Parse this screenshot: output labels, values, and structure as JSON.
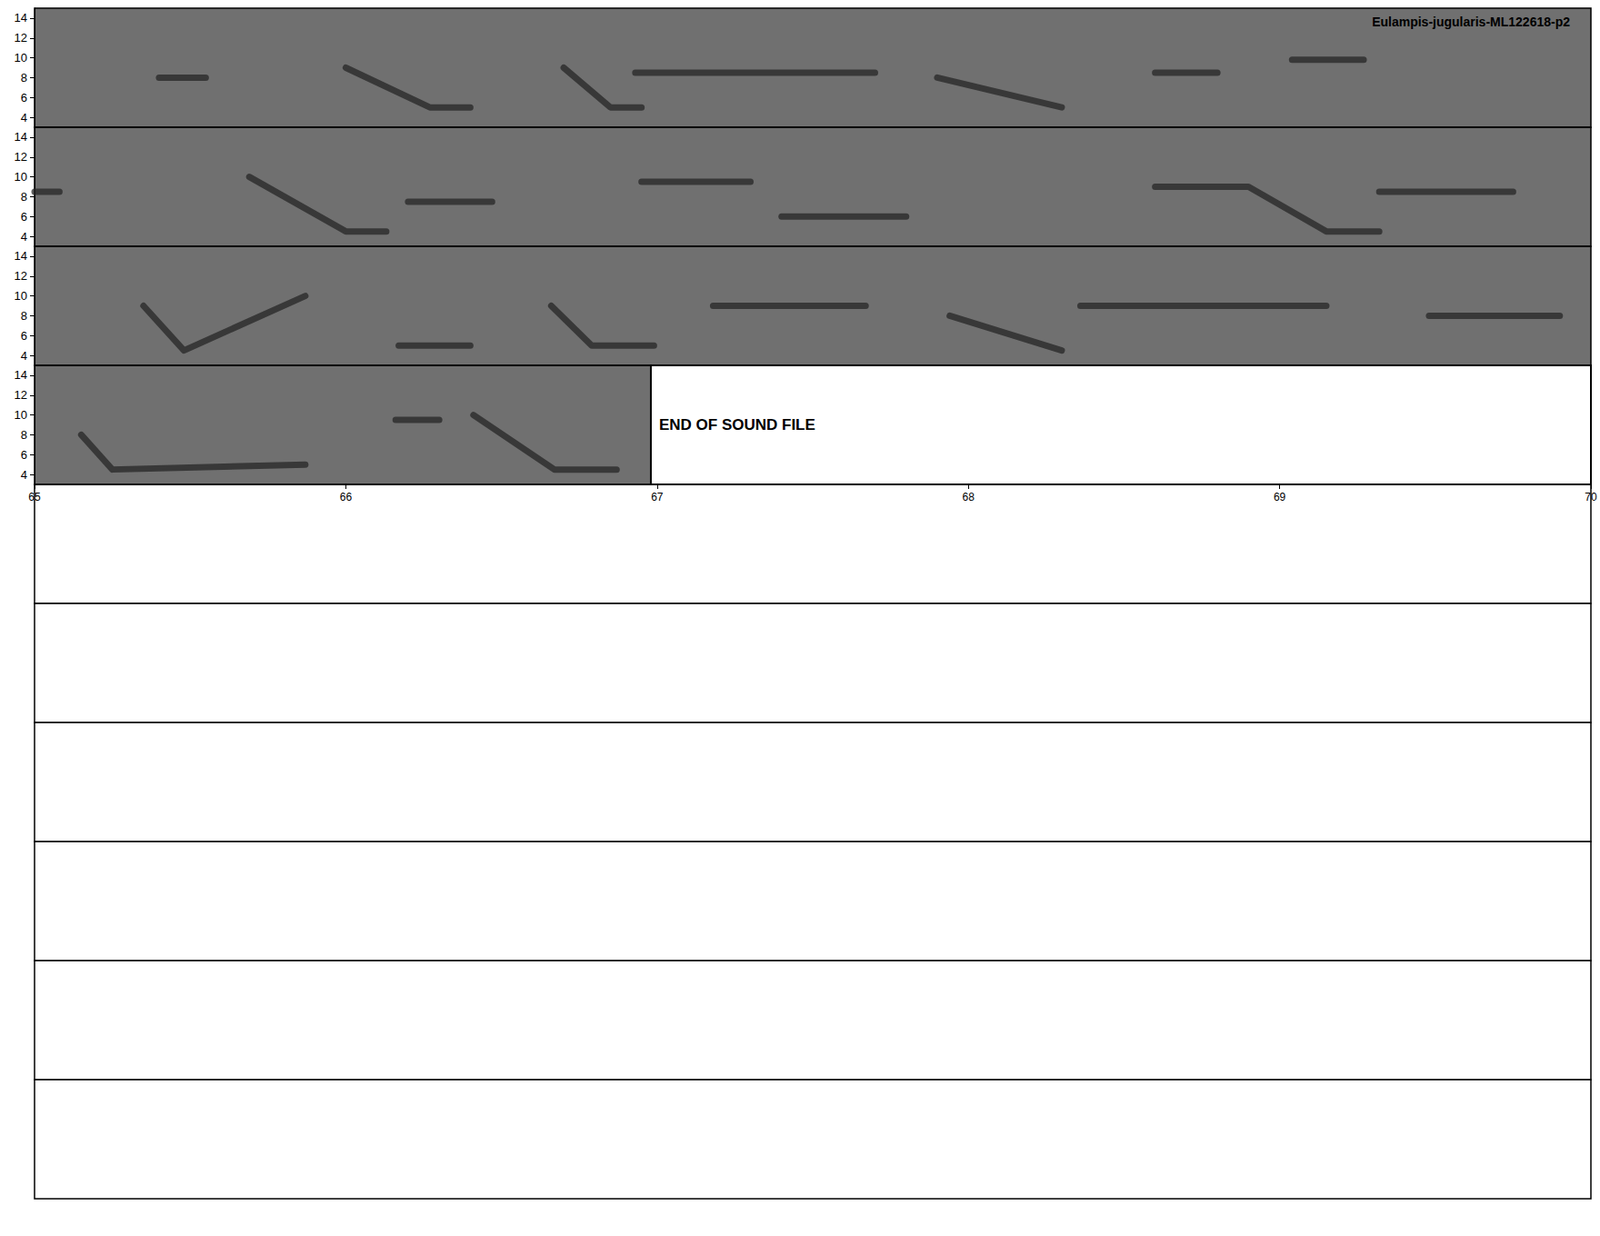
{
  "chart_data": {
    "type": "spectrogram",
    "title": "Eulampis-jugularis-ML122618-p2",
    "annotation": "END OF SOUND FILE",
    "audio_end": 66.98,
    "ylim": [
      3,
      15
    ],
    "yticks": [
      4,
      6,
      8,
      10,
      12,
      14
    ],
    "tick_labels": "y",
    "empty_panels": 6,
    "panels": [
      {
        "xlim": [
          50,
          55
        ],
        "syllables": [
          [
            [
              50.4,
              8
            ],
            [
              50.55,
              8
            ]
          ],
          [
            [
              51.0,
              9
            ],
            [
              51.27,
              5
            ],
            [
              51.4,
              5
            ]
          ],
          [
            [
              51.7,
              9
            ],
            [
              51.85,
              5
            ],
            [
              51.95,
              5
            ]
          ],
          [
            [
              51.93,
              8.5
            ],
            [
              52.7,
              8.5
            ]
          ],
          [
            [
              52.9,
              8
            ],
            [
              53.3,
              5
            ]
          ],
          [
            [
              53.6,
              8.5
            ],
            [
              53.8,
              8.5
            ]
          ],
          [
            [
              54.04,
              9.8
            ],
            [
              54.27,
              9.8
            ]
          ]
        ]
      },
      {
        "xlim": [
          55,
          60
        ],
        "syllables": [
          [
            [
              55.0,
              8.5
            ],
            [
              55.08,
              8.5
            ]
          ],
          [
            [
              55.69,
              10
            ],
            [
              56.0,
              4.5
            ],
            [
              56.13,
              4.5
            ]
          ],
          [
            [
              56.2,
              7.5
            ],
            [
              56.47,
              7.5
            ]
          ],
          [
            [
              56.95,
              9.5
            ],
            [
              57.3,
              9.5
            ]
          ],
          [
            [
              57.4,
              6
            ],
            [
              57.8,
              6
            ]
          ],
          [
            [
              58.6,
              9
            ],
            [
              58.9,
              9
            ],
            [
              59.15,
              4.5
            ],
            [
              59.32,
              4.5
            ]
          ],
          [
            [
              59.32,
              8.5
            ],
            [
              59.75,
              8.5
            ]
          ]
        ]
      },
      {
        "xlim": [
          60,
          65
        ],
        "syllables": [
          [
            [
              60.35,
              9
            ],
            [
              60.48,
              4.5
            ],
            [
              60.87,
              10
            ]
          ],
          [
            [
              61.17,
              5
            ],
            [
              61.4,
              5
            ]
          ],
          [
            [
              61.66,
              9
            ],
            [
              61.79,
              5
            ],
            [
              61.99,
              5
            ]
          ],
          [
            [
              62.18,
              9
            ],
            [
              62.67,
              9
            ]
          ],
          [
            [
              62.94,
              8
            ],
            [
              63.3,
              4.5
            ]
          ],
          [
            [
              63.36,
              9
            ],
            [
              64.15,
              9
            ]
          ],
          [
            [
              64.48,
              8
            ],
            [
              64.9,
              8
            ]
          ]
        ]
      },
      {
        "xlim": [
          65,
          70
        ],
        "xticks": [
          65,
          66,
          67,
          68,
          69,
          70
        ],
        "syllables": [
          [
            [
              65.15,
              8
            ],
            [
              65.25,
              4.5
            ],
            [
              65.87,
              5
            ]
          ],
          [
            [
              66.16,
              9.5
            ],
            [
              66.3,
              9.5
            ]
          ],
          [
            [
              66.41,
              10
            ],
            [
              66.67,
              4.5
            ],
            [
              66.87,
              4.5
            ]
          ]
        ]
      }
    ]
  }
}
